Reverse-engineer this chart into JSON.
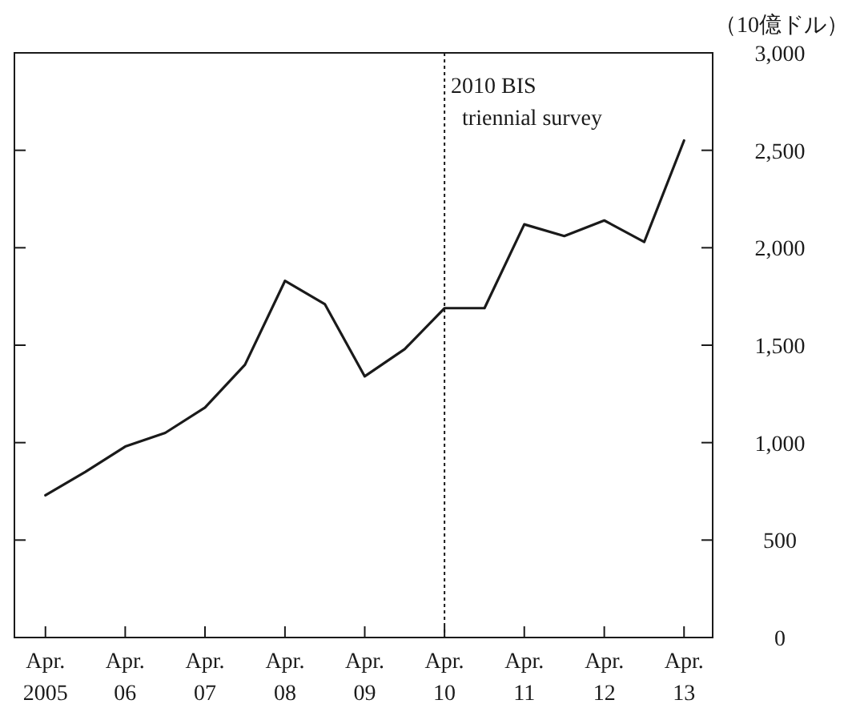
{
  "chart_data": {
    "type": "line",
    "ylabel": "（10億ドル）",
    "x": [
      "2005-04",
      "2005-10",
      "2006-04",
      "2006-10",
      "2007-04",
      "2007-10",
      "2008-04",
      "2008-10",
      "2009-04",
      "2009-10",
      "2010-04",
      "2010-10",
      "2011-04",
      "2011-10",
      "2012-04",
      "2012-10",
      "2013-04"
    ],
    "series": [
      {
        "color": "#1a1a1a",
        "values": [
          730,
          850,
          980,
          1050,
          1180,
          1400,
          1830,
          1710,
          1340,
          1480,
          1690,
          1690,
          2120,
          2060,
          2140,
          2030,
          2550
        ]
      }
    ],
    "xlim": [
      "2004-11-10",
      "2013-08-10"
    ],
    "xticks": [
      {
        "value": "2005-04",
        "label": "Apr.\n2005"
      },
      {
        "value": "2006-04",
        "label": "Apr.\n06"
      },
      {
        "value": "2007-04",
        "label": "Apr.\n07"
      },
      {
        "value": "2008-04",
        "label": "Apr.\n08"
      },
      {
        "value": "2009-04",
        "label": "Apr.\n09"
      },
      {
        "value": "2010-04",
        "label": "Apr.\n10"
      },
      {
        "value": "2011-04",
        "label": "Apr.\n11"
      },
      {
        "value": "2012-04",
        "label": "Apr.\n12"
      },
      {
        "value": "2013-04",
        "label": "Apr.\n13"
      }
    ],
    "ylim": [
      0,
      3000
    ],
    "yticks": [
      {
        "value": 0,
        "label": "0"
      },
      {
        "value": 500,
        "label": "500"
      },
      {
        "value": 1000,
        "label": "1,000"
      },
      {
        "value": 1500,
        "label": "1,500"
      },
      {
        "value": 2000,
        "label": "2,000"
      },
      {
        "value": 2500,
        "label": "2,500"
      },
      {
        "value": 3000,
        "label": "3,000"
      }
    ],
    "ref_lines": [
      {
        "axis": "x",
        "value": "2010-04",
        "label": "2010 BIS\ntriennial survey",
        "line_style": "dotted",
        "color": "#1a1a1a"
      }
    ],
    "grid": false,
    "marker": "none",
    "line_style": "solid"
  }
}
